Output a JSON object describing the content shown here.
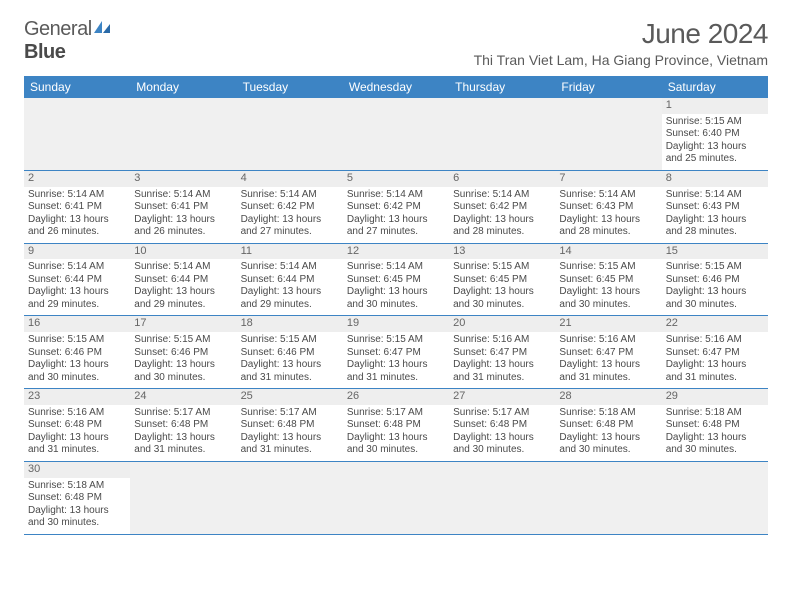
{
  "logo": {
    "part1": "General",
    "part2": "Blue"
  },
  "title": "June 2024",
  "location": "Thi Tran Viet Lam, Ha Giang Province, Vietnam",
  "colors": {
    "header_bg": "#3d84c4",
    "header_text": "#ffffff",
    "daynum_bg": "#eeeeee",
    "border": "#3d84c4",
    "text": "#4a4a4a"
  },
  "weekdays": [
    "Sunday",
    "Monday",
    "Tuesday",
    "Wednesday",
    "Thursday",
    "Friday",
    "Saturday"
  ],
  "days": {
    "1": {
      "sunrise": "Sunrise: 5:15 AM",
      "sunset": "Sunset: 6:40 PM",
      "daylight1": "Daylight: 13 hours",
      "daylight2": "and 25 minutes."
    },
    "2": {
      "sunrise": "Sunrise: 5:14 AM",
      "sunset": "Sunset: 6:41 PM",
      "daylight1": "Daylight: 13 hours",
      "daylight2": "and 26 minutes."
    },
    "3": {
      "sunrise": "Sunrise: 5:14 AM",
      "sunset": "Sunset: 6:41 PM",
      "daylight1": "Daylight: 13 hours",
      "daylight2": "and 26 minutes."
    },
    "4": {
      "sunrise": "Sunrise: 5:14 AM",
      "sunset": "Sunset: 6:42 PM",
      "daylight1": "Daylight: 13 hours",
      "daylight2": "and 27 minutes."
    },
    "5": {
      "sunrise": "Sunrise: 5:14 AM",
      "sunset": "Sunset: 6:42 PM",
      "daylight1": "Daylight: 13 hours",
      "daylight2": "and 27 minutes."
    },
    "6": {
      "sunrise": "Sunrise: 5:14 AM",
      "sunset": "Sunset: 6:42 PM",
      "daylight1": "Daylight: 13 hours",
      "daylight2": "and 28 minutes."
    },
    "7": {
      "sunrise": "Sunrise: 5:14 AM",
      "sunset": "Sunset: 6:43 PM",
      "daylight1": "Daylight: 13 hours",
      "daylight2": "and 28 minutes."
    },
    "8": {
      "sunrise": "Sunrise: 5:14 AM",
      "sunset": "Sunset: 6:43 PM",
      "daylight1": "Daylight: 13 hours",
      "daylight2": "and 28 minutes."
    },
    "9": {
      "sunrise": "Sunrise: 5:14 AM",
      "sunset": "Sunset: 6:44 PM",
      "daylight1": "Daylight: 13 hours",
      "daylight2": "and 29 minutes."
    },
    "10": {
      "sunrise": "Sunrise: 5:14 AM",
      "sunset": "Sunset: 6:44 PM",
      "daylight1": "Daylight: 13 hours",
      "daylight2": "and 29 minutes."
    },
    "11": {
      "sunrise": "Sunrise: 5:14 AM",
      "sunset": "Sunset: 6:44 PM",
      "daylight1": "Daylight: 13 hours",
      "daylight2": "and 29 minutes."
    },
    "12": {
      "sunrise": "Sunrise: 5:14 AM",
      "sunset": "Sunset: 6:45 PM",
      "daylight1": "Daylight: 13 hours",
      "daylight2": "and 30 minutes."
    },
    "13": {
      "sunrise": "Sunrise: 5:15 AM",
      "sunset": "Sunset: 6:45 PM",
      "daylight1": "Daylight: 13 hours",
      "daylight2": "and 30 minutes."
    },
    "14": {
      "sunrise": "Sunrise: 5:15 AM",
      "sunset": "Sunset: 6:45 PM",
      "daylight1": "Daylight: 13 hours",
      "daylight2": "and 30 minutes."
    },
    "15": {
      "sunrise": "Sunrise: 5:15 AM",
      "sunset": "Sunset: 6:46 PM",
      "daylight1": "Daylight: 13 hours",
      "daylight2": "and 30 minutes."
    },
    "16": {
      "sunrise": "Sunrise: 5:15 AM",
      "sunset": "Sunset: 6:46 PM",
      "daylight1": "Daylight: 13 hours",
      "daylight2": "and 30 minutes."
    },
    "17": {
      "sunrise": "Sunrise: 5:15 AM",
      "sunset": "Sunset: 6:46 PM",
      "daylight1": "Daylight: 13 hours",
      "daylight2": "and 30 minutes."
    },
    "18": {
      "sunrise": "Sunrise: 5:15 AM",
      "sunset": "Sunset: 6:46 PM",
      "daylight1": "Daylight: 13 hours",
      "daylight2": "and 31 minutes."
    },
    "19": {
      "sunrise": "Sunrise: 5:15 AM",
      "sunset": "Sunset: 6:47 PM",
      "daylight1": "Daylight: 13 hours",
      "daylight2": "and 31 minutes."
    },
    "20": {
      "sunrise": "Sunrise: 5:16 AM",
      "sunset": "Sunset: 6:47 PM",
      "daylight1": "Daylight: 13 hours",
      "daylight2": "and 31 minutes."
    },
    "21": {
      "sunrise": "Sunrise: 5:16 AM",
      "sunset": "Sunset: 6:47 PM",
      "daylight1": "Daylight: 13 hours",
      "daylight2": "and 31 minutes."
    },
    "22": {
      "sunrise": "Sunrise: 5:16 AM",
      "sunset": "Sunset: 6:47 PM",
      "daylight1": "Daylight: 13 hours",
      "daylight2": "and 31 minutes."
    },
    "23": {
      "sunrise": "Sunrise: 5:16 AM",
      "sunset": "Sunset: 6:48 PM",
      "daylight1": "Daylight: 13 hours",
      "daylight2": "and 31 minutes."
    },
    "24": {
      "sunrise": "Sunrise: 5:17 AM",
      "sunset": "Sunset: 6:48 PM",
      "daylight1": "Daylight: 13 hours",
      "daylight2": "and 31 minutes."
    },
    "25": {
      "sunrise": "Sunrise: 5:17 AM",
      "sunset": "Sunset: 6:48 PM",
      "daylight1": "Daylight: 13 hours",
      "daylight2": "and 31 minutes."
    },
    "26": {
      "sunrise": "Sunrise: 5:17 AM",
      "sunset": "Sunset: 6:48 PM",
      "daylight1": "Daylight: 13 hours",
      "daylight2": "and 30 minutes."
    },
    "27": {
      "sunrise": "Sunrise: 5:17 AM",
      "sunset": "Sunset: 6:48 PM",
      "daylight1": "Daylight: 13 hours",
      "daylight2": "and 30 minutes."
    },
    "28": {
      "sunrise": "Sunrise: 5:18 AM",
      "sunset": "Sunset: 6:48 PM",
      "daylight1": "Daylight: 13 hours",
      "daylight2": "and 30 minutes."
    },
    "29": {
      "sunrise": "Sunrise: 5:18 AM",
      "sunset": "Sunset: 6:48 PM",
      "daylight1": "Daylight: 13 hours",
      "daylight2": "and 30 minutes."
    },
    "30": {
      "sunrise": "Sunrise: 5:18 AM",
      "sunset": "Sunset: 6:48 PM",
      "daylight1": "Daylight: 13 hours",
      "daylight2": "and 30 minutes."
    }
  },
  "grid": [
    [
      null,
      null,
      null,
      null,
      null,
      null,
      "1"
    ],
    [
      "2",
      "3",
      "4",
      "5",
      "6",
      "7",
      "8"
    ],
    [
      "9",
      "10",
      "11",
      "12",
      "13",
      "14",
      "15"
    ],
    [
      "16",
      "17",
      "18",
      "19",
      "20",
      "21",
      "22"
    ],
    [
      "23",
      "24",
      "25",
      "26",
      "27",
      "28",
      "29"
    ],
    [
      "30",
      null,
      null,
      null,
      null,
      null,
      null
    ]
  ]
}
